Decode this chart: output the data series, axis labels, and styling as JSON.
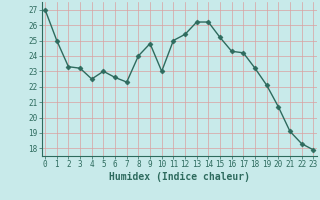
{
  "x": [
    0,
    1,
    2,
    3,
    4,
    5,
    6,
    7,
    8,
    9,
    10,
    11,
    12,
    13,
    14,
    15,
    16,
    17,
    18,
    19,
    20,
    21,
    22,
    23
  ],
  "y": [
    27.0,
    25.0,
    23.3,
    23.2,
    22.5,
    23.0,
    22.6,
    22.3,
    24.0,
    24.8,
    23.0,
    25.0,
    25.4,
    26.2,
    26.2,
    25.2,
    24.3,
    24.2,
    23.2,
    22.1,
    20.7,
    19.1,
    18.3,
    17.9
  ],
  "line_color": "#2e6b5e",
  "marker": "D",
  "marker_size": 2.5,
  "bg_color": "#c8eaea",
  "grid_color": "#daa0a0",
  "xlabel": "Humidex (Indice chaleur)",
  "xlabel_fontsize": 7,
  "ylim": [
    17.5,
    27.5
  ],
  "yticks": [
    18,
    19,
    20,
    21,
    22,
    23,
    24,
    25,
    26,
    27
  ],
  "xticks": [
    0,
    1,
    2,
    3,
    4,
    5,
    6,
    7,
    8,
    9,
    10,
    11,
    12,
    13,
    14,
    15,
    16,
    17,
    18,
    19,
    20,
    21,
    22,
    23
  ],
  "tick_fontsize": 5.5,
  "axis_color": "#2e6b5e",
  "linewidth": 1.0,
  "xlim": [
    -0.3,
    23.3
  ]
}
